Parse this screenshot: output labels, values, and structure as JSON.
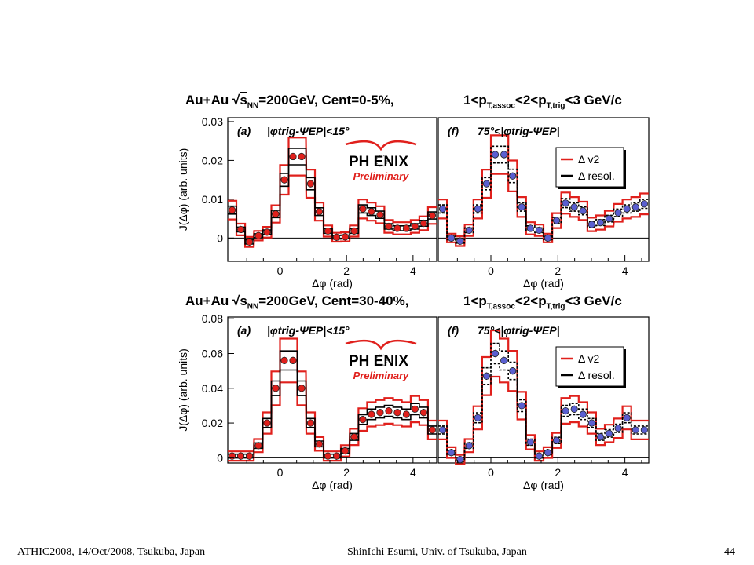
{
  "footer": {
    "left": "ATHIC2008, 14/Oct/2008, Tsukuba, Japan",
    "center": "ShinIchi Esumi, Univ. of Tsukuba, Japan",
    "page": "44"
  },
  "colors": {
    "red": "#e0201c",
    "blue": "#5a5fd0",
    "black": "#000000"
  },
  "rows": [
    {
      "title_left_prefix": "Au+Au ",
      "title_left_sqrt": "s",
      "title_left_sub": "NN",
      "title_left_suffix": "=200GeV, Cent=0-5%,",
      "title_right_1": "1<p",
      "title_right_sub1": "T,assoc",
      "title_right_2": "<2<p",
      "title_right_sub2": "T,trig",
      "title_right_3": "<3 GeV/c"
    },
    {
      "title_left_prefix": "Au+Au ",
      "title_left_sqrt": "s",
      "title_left_sub": "NN",
      "title_left_suffix": "=200GeV, Cent=30-40%,",
      "title_right_1": "1<p",
      "title_right_sub1": "T,assoc",
      "title_right_2": "<2<p",
      "title_right_sub2": "T,trig",
      "title_right_3": "<3 GeV/c"
    }
  ],
  "chart_data": [
    {
      "type": "scatter",
      "panel": "(a)",
      "cut_label": "|φtrig-ΨEP|<15°",
      "xlabel": "Δφ (rad)",
      "ylabel": "J(Δφ) (arb. units)",
      "xlim": [
        -1.571,
        4.712
      ],
      "ylim": [
        -0.006,
        0.031
      ],
      "yticks": [
        0,
        0.01,
        0.02,
        0.03
      ],
      "ytick_labels": [
        "0",
        "0.01",
        "0.02",
        "0.03"
      ],
      "xticks": [
        0,
        2,
        4
      ],
      "xtick_labels": [
        "0",
        "2",
        "4"
      ],
      "logo": "PH ENIX",
      "logo_sub": "Preliminary",
      "marker_color": "red",
      "x": [
        -1.44,
        -1.18,
        -0.92,
        -0.65,
        -0.39,
        -0.13,
        0.13,
        0.39,
        0.65,
        0.92,
        1.18,
        1.44,
        1.7,
        1.96,
        2.23,
        2.49,
        2.75,
        3.01,
        3.27,
        3.53,
        3.8,
        4.06,
        4.32,
        4.58
      ],
      "values": [
        0.0072,
        0.0022,
        -0.001,
        0.0006,
        0.0015,
        0.0062,
        0.015,
        0.021,
        0.021,
        0.014,
        0.0068,
        0.0018,
        0.0002,
        0.0003,
        0.0018,
        0.0075,
        0.0068,
        0.006,
        0.003,
        0.0025,
        0.0025,
        0.003,
        0.0038,
        0.0058
      ]
    },
    {
      "type": "scatter",
      "panel": "(f)",
      "cut_label": "75°<|φtrig-ΨEP|",
      "xlabel": "Δφ (rad)",
      "ylabel": "",
      "xlim": [
        -1.571,
        4.712
      ],
      "ylim": [
        -0.006,
        0.031
      ],
      "xticks": [
        0,
        2,
        4
      ],
      "xtick_labels": [
        "0",
        "2",
        "4"
      ],
      "legend": [
        "Δ v2",
        "Δ resol."
      ],
      "marker_color": "blue",
      "x": [
        -1.44,
        -1.18,
        -0.92,
        -0.65,
        -0.39,
        -0.13,
        0.13,
        0.39,
        0.65,
        0.92,
        1.18,
        1.44,
        1.7,
        1.96,
        2.23,
        2.49,
        2.75,
        3.01,
        3.27,
        3.53,
        3.8,
        4.06,
        4.32,
        4.58
      ],
      "values": [
        0.0075,
        0.0,
        -0.0008,
        0.002,
        0.0075,
        0.014,
        0.0215,
        0.0215,
        0.016,
        0.008,
        0.0025,
        0.002,
        0.0,
        0.0045,
        0.009,
        0.008,
        0.007,
        0.0035,
        0.004,
        0.005,
        0.0065,
        0.0075,
        0.008,
        0.0088
      ]
    },
    {
      "type": "scatter",
      "panel": "(a)",
      "cut_label": "|φtrig-ΨEP|<15°",
      "xlabel": "Δφ (rad)",
      "ylabel": "J(Δφ) (arb. units)",
      "xlim": [
        -1.571,
        4.712
      ],
      "ylim": [
        -0.003,
        0.081
      ],
      "yticks": [
        0,
        0.02,
        0.04,
        0.06,
        0.08
      ],
      "ytick_labels": [
        "0",
        "0.02",
        "0.04",
        "0.06",
        "0.08"
      ],
      "xticks": [
        0,
        2,
        4
      ],
      "xtick_labels": [
        "0",
        "2",
        "4"
      ],
      "logo": "PH ENIX",
      "logo_sub": "Preliminary",
      "marker_color": "red",
      "x": [
        -1.44,
        -1.18,
        -0.92,
        -0.65,
        -0.39,
        -0.13,
        0.13,
        0.39,
        0.65,
        0.92,
        1.18,
        1.44,
        1.7,
        1.96,
        2.23,
        2.49,
        2.75,
        3.01,
        3.27,
        3.53,
        3.8,
        4.06,
        4.32,
        4.58
      ],
      "values": [
        0.001,
        0.001,
        0.001,
        0.007,
        0.02,
        0.04,
        0.056,
        0.056,
        0.04,
        0.02,
        0.008,
        0.001,
        0.001,
        0.004,
        0.012,
        0.022,
        0.025,
        0.026,
        0.027,
        0.026,
        0.025,
        0.028,
        0.026,
        0.016
      ]
    },
    {
      "type": "scatter",
      "panel": "(f)",
      "cut_label": "75°<|φtrig-ΨEP|",
      "xlabel": "Δφ (rad)",
      "ylabel": "",
      "xlim": [
        -1.571,
        4.712
      ],
      "ylim": [
        -0.003,
        0.081
      ],
      "xticks": [
        0,
        2,
        4
      ],
      "xtick_labels": [
        "0",
        "2",
        "4"
      ],
      "legend": [
        "Δ v2",
        "Δ resol."
      ],
      "marker_color": "blue",
      "x": [
        -1.44,
        -1.18,
        -0.92,
        -0.65,
        -0.39,
        -0.13,
        0.13,
        0.39,
        0.65,
        0.92,
        1.18,
        1.44,
        1.7,
        1.96,
        2.23,
        2.49,
        2.75,
        3.01,
        3.27,
        3.53,
        3.8,
        4.06,
        4.32,
        4.58
      ],
      "values": [
        0.016,
        0.003,
        -0.001,
        0.007,
        0.023,
        0.047,
        0.06,
        0.056,
        0.05,
        0.03,
        0.009,
        0.001,
        0.003,
        0.01,
        0.027,
        0.028,
        0.025,
        0.02,
        0.012,
        0.014,
        0.017,
        0.023,
        0.016,
        0.016
      ]
    }
  ]
}
